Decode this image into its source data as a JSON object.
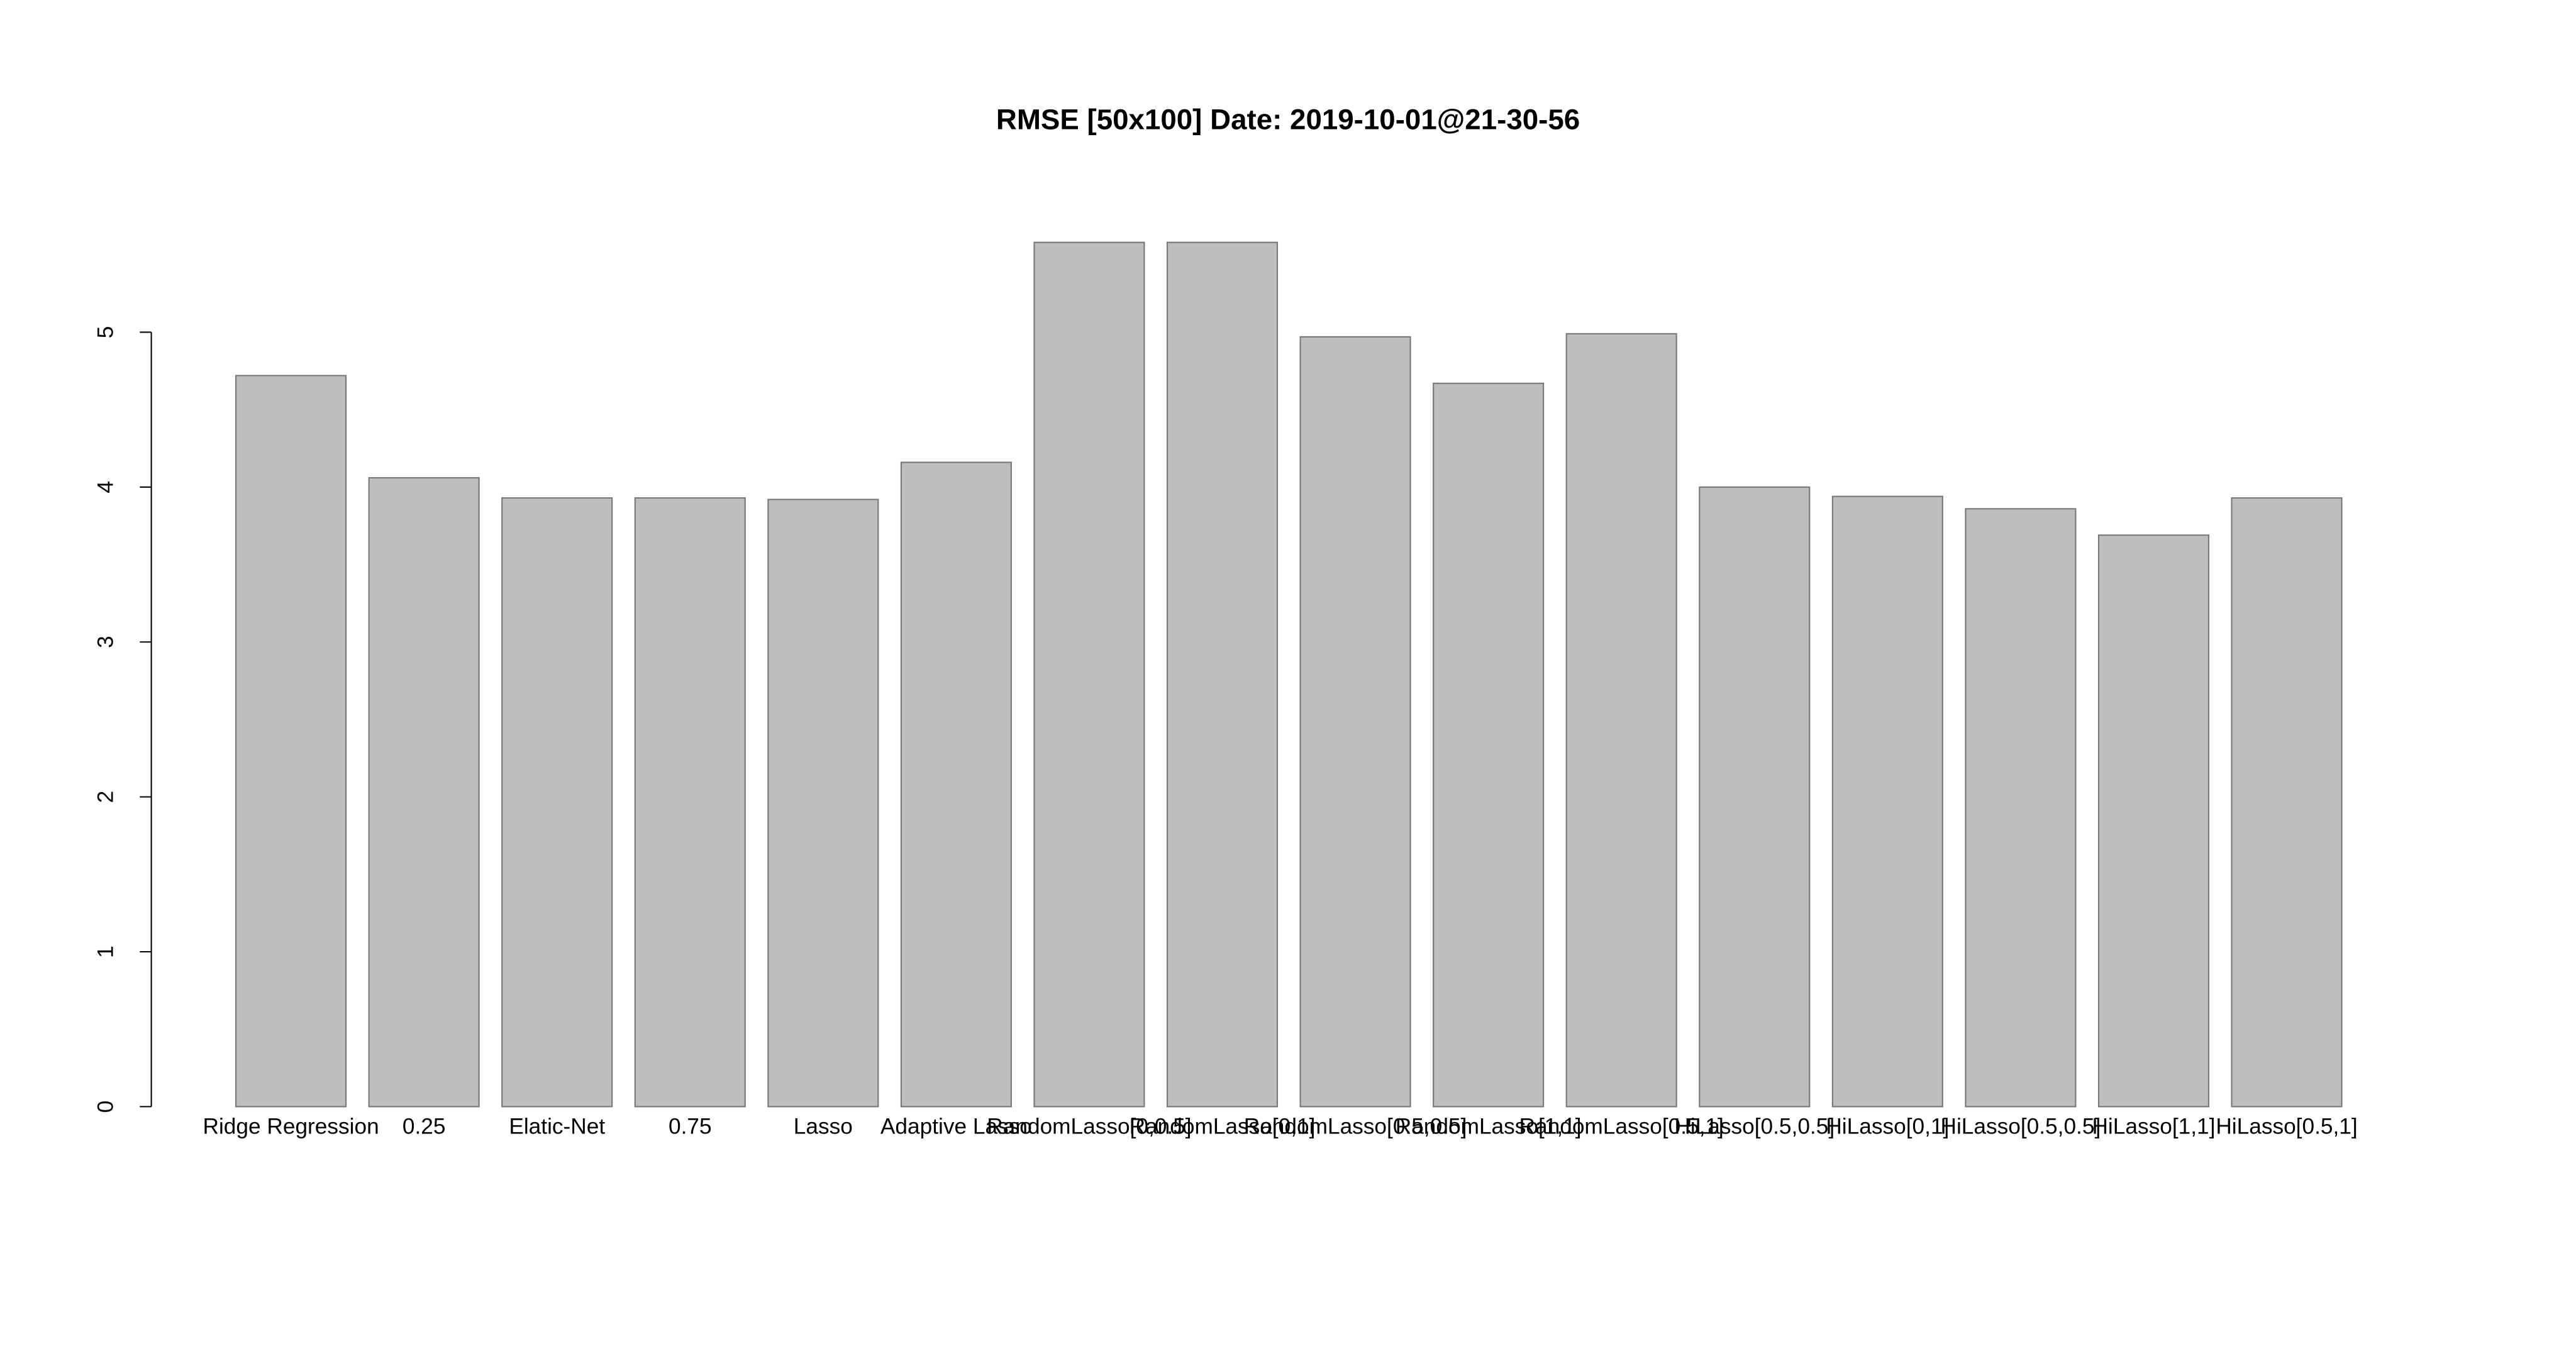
{
  "chart_data": {
    "type": "bar",
    "title": "RMSE [50x100] Date: 2019-10-01@21-30-56",
    "categories": [
      "Ridge Regression",
      "0.25",
      "Elatic-Net",
      "0.75",
      "Lasso",
      "Adaptive Lasso",
      "RandomLasso[0,0.5]",
      "RandomLasso[0,1]",
      "RandomLasso[0.5,0.5]",
      "RandomLasso[1,1]",
      "RandomLasso[0.5,1]",
      "HiLasso[0.5,0.5]",
      "HiLasso[0,1]",
      "HiLasso[0.5,0.5]",
      "HiLasso[1,1]",
      "HiLasso[0.5,1]"
    ],
    "values": [
      4.72,
      4.06,
      3.93,
      3.93,
      3.92,
      4.16,
      5.58,
      5.58,
      4.97,
      4.67,
      4.99,
      4.0,
      3.94,
      3.86,
      3.69,
      3.93
    ],
    "color": "#bebebe",
    "ylim": [
      0,
      6
    ],
    "yticks": [
      0,
      1,
      2,
      3,
      4,
      5
    ],
    "grid": false
  }
}
